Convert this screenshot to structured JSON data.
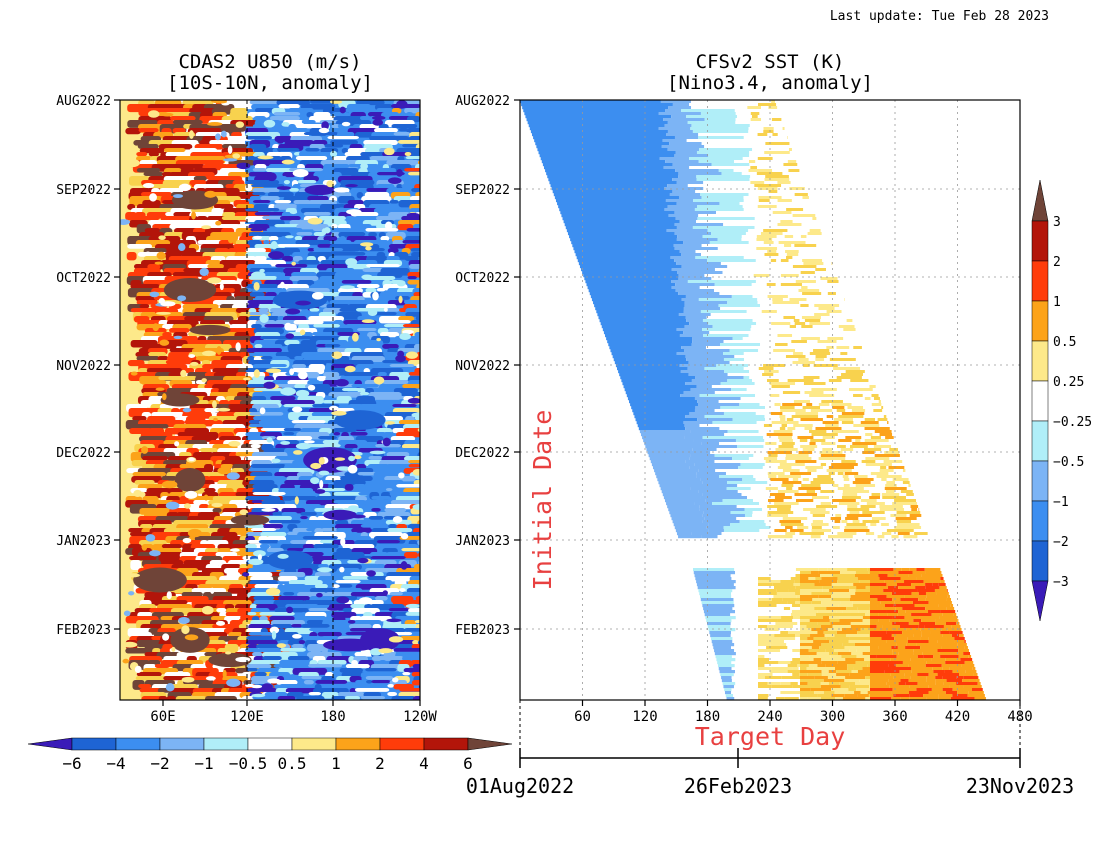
{
  "last_update": "Last update: Tue Feb 28 2023",
  "colors": {
    "d1": "#3a1bb8",
    "d2": "#1e64d4",
    "d3": "#3c8ef0",
    "d4": "#7cb4f5",
    "d5": "#b0eef8",
    "w": "#ffffff",
    "y1": "#fde98a",
    "y2": "#f8d24e",
    "o1": "#fca31a",
    "o2": "#ff3c0a",
    "r1": "#b3150a",
    "br": "#6f4438",
    "guide": "#333333",
    "red_label": "#e84040"
  },
  "left_panel": {
    "title_line1": "CDAS2 U850 (m/s)",
    "title_line2": "[10S-10N, anomaly]"
  },
  "right_panel": {
    "title_line1": "CFSv2 SST (K)",
    "title_line2": "[Nino3.4, anomaly]",
    "y_axis_label": "Initial Date",
    "x_axis_label": "Target Day",
    "date_axis_labels": [
      "01Aug2022",
      "26Feb2023",
      "23Nov2023"
    ]
  },
  "colorbar_bottom": {
    "labels": [
      "−6",
      "−4",
      "−2",
      "−1",
      "−0.5",
      "0.5",
      "1",
      "2",
      "4",
      "6"
    ]
  },
  "colorbar_right": {
    "labels": [
      "3",
      "2",
      "1",
      "0.5",
      "0.25",
      "−0.25",
      "−0.5",
      "−1",
      "−2",
      "−3"
    ]
  },
  "chart_data": [
    {
      "type": "heatmap",
      "title": "CDAS2 U850 (m/s) [10S-10N, anomaly]",
      "x_ticks": [
        "60E",
        "120E",
        "180",
        "120W"
      ],
      "x_range": [
        30,
        240
      ],
      "y_ticks": [
        "AUG2022",
        "SEP2022",
        "OCT2022",
        "NOV2022",
        "DEC2022",
        "JAN2023",
        "FEB2023"
      ],
      "y_range": [
        "2022-08-01",
        "2023-02-28"
      ],
      "reference_lines_x": [
        "120E",
        "180"
      ],
      "color_levels": [
        -6,
        -4,
        -2,
        -1,
        -0.5,
        0.5,
        1,
        2,
        4,
        6
      ],
      "features": [
        "Westerly (positive, red/brown) anomalies persistent around 60E-100E",
        "Easterly (negative, blue) anomalies dominant from 130E to 150W",
        "Strong easterly core near 180 in Feb 2023"
      ]
    },
    {
      "type": "heatmap",
      "title": "CFSv2 SST (K) [Nino3.4, anomaly]",
      "xlabel": "Target Day",
      "ylabel": "Initial Date",
      "x_ticks": [
        60,
        120,
        180,
        240,
        300,
        360,
        420,
        480
      ],
      "x_range": [
        0,
        480
      ],
      "y_ticks": [
        "AUG2022",
        "SEP2022",
        "OCT2022",
        "NOV2022",
        "DEC2022",
        "JAN2023",
        "FEB2023"
      ],
      "y_range": [
        "2022-08-01",
        "2023-02-28"
      ],
      "color_levels": [
        -3,
        -2,
        -1,
        -0.5,
        -0.25,
        0.25,
        0.5,
        1,
        2,
        3
      ],
      "grid": true,
      "features": [
        "Negative anomalies (-1 to -0.5 K) in early target days for all initial dates",
        "Transition to near zero around target day 180-240",
        "Positive anomalies (0.25 to 1 K) at long lead times",
        "Initial dates in Feb 2023 show warmer forecasts reaching 1-2 K"
      ]
    }
  ]
}
